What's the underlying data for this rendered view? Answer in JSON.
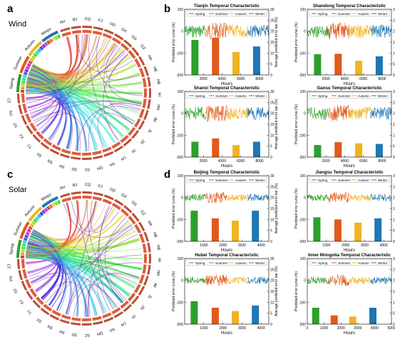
{
  "panels": {
    "a": {
      "letter": "a",
      "label": "Wind"
    },
    "b": {
      "letter": "b"
    },
    "c": {
      "letter": "c",
      "label": "Solar"
    },
    "d": {
      "letter": "d"
    }
  },
  "chord": {
    "wind_regions": [
      "AH",
      "BJ",
      "CQ",
      "FJ",
      "GD",
      "GX",
      "GS",
      "GZ",
      "HA",
      "HE",
      "HB",
      "HI",
      "HN",
      "IM",
      "JL",
      "JS",
      "JX",
      "LN",
      "NX",
      "QH",
      "SC",
      "SD",
      "SH",
      "SN",
      "SX",
      "TJ",
      "XJ",
      "XZ",
      "YN",
      "ZJ"
    ],
    "solar_regions": [
      "AH",
      "BJ",
      "CQ",
      "FJ",
      "GD",
      "GX",
      "GS",
      "GZ",
      "HA",
      "HE",
      "HB",
      "HI",
      "HN",
      "IM",
      "JL",
      "JS",
      "JX",
      "LN",
      "NX",
      "QH",
      "SC",
      "SD",
      "SH",
      "SN",
      "SX",
      "TJ",
      "XJ",
      "XZ",
      "YN",
      "ZJ"
    ],
    "seasons": [
      "Spring",
      "Summer",
      "Autumn",
      "Winter"
    ],
    "colors": {
      "spring": "#2ca02c",
      "summer": "#e05a1c",
      "autumn": "#f0b323",
      "winter": "#1f77b4"
    }
  },
  "chart_data": [
    {
      "type": "bar",
      "title": "Tianjin Temporal Characteristic",
      "xlabel": "Hours",
      "ylabel": "Predicted error curve (%)",
      "y2label": "Average predicted error bar (%)",
      "xlim": [
        0,
        9000
      ],
      "xticks": [
        2000,
        4000,
        6000,
        8000
      ],
      "ylim": [
        -200,
        100
      ],
      "yticks": [
        -200,
        -100,
        0,
        100
      ],
      "y2lim": [
        0,
        30
      ],
      "y2ticks": [
        0,
        5,
        10,
        15,
        20,
        25,
        30
      ],
      "legend": [
        "Spring",
        "Summer",
        "Autumn",
        "Winter"
      ],
      "categories": [
        "Spring",
        "Summer",
        "Autumn",
        "Winter"
      ],
      "bar_x": [
        1100,
        3300,
        5500,
        7700
      ],
      "values": [
        16,
        17,
        10.5,
        13
      ]
    },
    {
      "type": "bar",
      "title": "Shandong Temporal Characteristic",
      "xlabel": "Hours",
      "ylabel": "Predicted error curve (%)",
      "y2label": "Average predicted error bar (%)",
      "xlim": [
        0,
        9000
      ],
      "xticks": [
        2000,
        4000,
        6000,
        8000
      ],
      "ylim": [
        -200,
        100
      ],
      "yticks": [
        -200,
        -100,
        0,
        100
      ],
      "y2lim": [
        0,
        30
      ],
      "y2ticks": [
        0,
        5,
        10,
        15,
        20,
        25,
        30
      ],
      "legend": [
        "Spring",
        "Summer",
        "Autumn",
        "Winter"
      ],
      "categories": [
        "Spring",
        "Summer",
        "Autumn",
        "Winter"
      ],
      "bar_x": [
        1100,
        3300,
        5500,
        7700
      ],
      "values": [
        9.5,
        9.7,
        6.5,
        8.5
      ]
    },
    {
      "type": "bar",
      "title": "Shanxi Temporal Characteristic",
      "xlabel": "Hours",
      "ylabel": "Predicted error curve (%)",
      "y2label": "Average predicted error bar (%)",
      "xlim": [
        0,
        9000
      ],
      "xticks": [
        2000,
        4000,
        6000,
        8000
      ],
      "ylim": [
        -200,
        100
      ],
      "yticks": [
        -200,
        -100,
        0,
        100
      ],
      "y2lim": [
        0,
        30
      ],
      "y2ticks": [
        0,
        5,
        10,
        15,
        20,
        25,
        30
      ],
      "legend": [
        "Spring",
        "Summer",
        "Autumn",
        "Winter"
      ],
      "categories": [
        "Spring",
        "Summer",
        "Autumn",
        "Winter"
      ],
      "bar_x": [
        1100,
        3300,
        5500,
        7700
      ],
      "values": [
        7,
        8.5,
        5.5,
        7
      ]
    },
    {
      "type": "bar",
      "title": "Gansu Temporal Characteristic",
      "xlabel": "Hours",
      "ylabel": "Predicted error curve (%)",
      "y2label": "Average predicted error bar (%)",
      "xlim": [
        0,
        9000
      ],
      "xticks": [
        2000,
        4000,
        6000,
        8000
      ],
      "ylim": [
        -200,
        100
      ],
      "yticks": [
        -200,
        -100,
        0,
        100
      ],
      "y2lim": [
        0,
        30
      ],
      "y2ticks": [
        0,
        5,
        10,
        15,
        20,
        25,
        30
      ],
      "legend": [
        "Spring",
        "Summer",
        "Autumn",
        "Winter"
      ],
      "categories": [
        "Spring",
        "Summer",
        "Autumn",
        "Winter"
      ],
      "bar_x": [
        1100,
        3300,
        5500,
        7700
      ],
      "values": [
        5.5,
        6.8,
        6.3,
        6
      ]
    },
    {
      "type": "bar",
      "title": "Beijing Temporal Characteristic",
      "xlabel": "Hours",
      "ylabel": "Predicted error curve (%)",
      "y2label": "Average predicted error bar (%)",
      "xlim": [
        0,
        4400
      ],
      "xticks": [
        1000,
        2000,
        3000,
        4000
      ],
      "ylim": [
        -200,
        100
      ],
      "yticks": [
        -200,
        -100,
        0,
        100
      ],
      "y2lim": [
        0,
        30
      ],
      "y2ticks": [
        0,
        5,
        10,
        15,
        20,
        25,
        30
      ],
      "legend": [
        "Spring",
        "Summer",
        "Autumn",
        "Winter"
      ],
      "categories": [
        "Spring",
        "Summer",
        "Autumn",
        "Winter"
      ],
      "bar_x": [
        500,
        1600,
        2650,
        3700
      ],
      "values": [
        14,
        10.5,
        9.5,
        14
      ]
    },
    {
      "type": "bar",
      "title": "Jiangsu Temporal Characteristic",
      "xlabel": "Hours",
      "ylabel": "Predicted error curve (%)",
      "y2label": "Average predicted error bar (%)",
      "xlim": [
        0,
        4400
      ],
      "xticks": [
        1000,
        2000,
        3000,
        4000
      ],
      "ylim": [
        -200,
        100
      ],
      "yticks": [
        -200,
        -100,
        0,
        100
      ],
      "y2lim": [
        0,
        30
      ],
      "y2ticks": [
        0,
        5,
        10,
        15,
        20,
        25,
        30
      ],
      "legend": [
        "Spring",
        "Summer",
        "Autumn",
        "Winter"
      ],
      "categories": [
        "Spring",
        "Summer",
        "Autumn",
        "Winter"
      ],
      "bar_x": [
        500,
        1600,
        2650,
        3700
      ],
      "values": [
        11,
        10,
        8.5,
        10.5
      ]
    },
    {
      "type": "bar",
      "title": "Hubei Temporal Characteristic",
      "xlabel": "Hours",
      "ylabel": "Predicted error curve (%)",
      "y2label": "Average predicted error bar (%)",
      "xlim": [
        0,
        4400
      ],
      "xticks": [
        1000,
        2000,
        3000,
        4000
      ],
      "ylim": [
        -200,
        100
      ],
      "yticks": [
        -200,
        -100,
        0,
        100
      ],
      "y2lim": [
        0,
        30
      ],
      "y2ticks": [
        0,
        5,
        10,
        15,
        20,
        25,
        30
      ],
      "legend": [
        "Spring",
        "Summer",
        "Autumn",
        "Winter"
      ],
      "categories": [
        "Spring",
        "Summer",
        "Autumn",
        "Winter"
      ],
      "bar_x": [
        500,
        1600,
        2650,
        3700
      ],
      "values": [
        10.5,
        7.5,
        6,
        8.5
      ]
    },
    {
      "type": "bar",
      "title": "Inner Mongolia Temporal Characteristic",
      "xlabel": "Hours",
      "ylabel": "Predicted error curve (%)",
      "y2label": "Average predicted error bar (%)",
      "xlim": [
        0,
        5000
      ],
      "xticks": [
        0,
        1000,
        2000,
        3000,
        4000,
        5000
      ],
      "ylim": [
        -200,
        100
      ],
      "yticks": [
        -200,
        -100,
        0,
        100
      ],
      "y2lim": [
        0,
        30
      ],
      "y2ticks": [
        0,
        5,
        10,
        15,
        20,
        25,
        30
      ],
      "legend": [
        "Spring",
        "Summer",
        "Autumn",
        "Winter"
      ],
      "categories": [
        "Spring",
        "Summer",
        "Autumn",
        "Winter"
      ],
      "bar_x": [
        500,
        1600,
        2700,
        3900
      ],
      "values": [
        7.5,
        4,
        3.5,
        7.5
      ]
    }
  ]
}
